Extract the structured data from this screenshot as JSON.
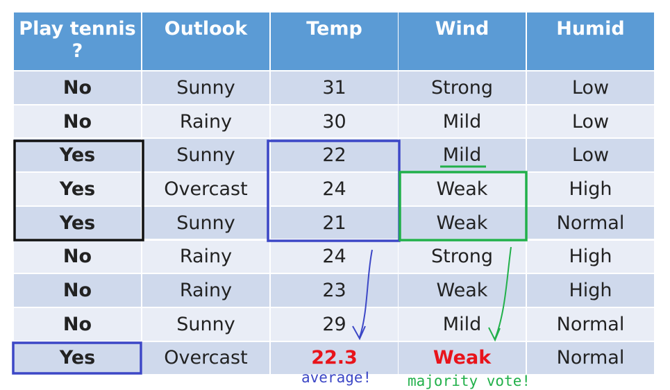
{
  "table": {
    "headers": [
      "Play tennis ?",
      "Outlook",
      "Temp",
      "Wind",
      "Humid"
    ],
    "rows": [
      [
        "No",
        "Sunny",
        "31",
        "Strong",
        "Low"
      ],
      [
        "No",
        "Rainy",
        "30",
        "Mild",
        "Low"
      ],
      [
        "Yes",
        "Sunny",
        "22",
        "Mild",
        "Low"
      ],
      [
        "Yes",
        "Overcast",
        "24",
        "Weak",
        "High"
      ],
      [
        "Yes",
        "Sunny",
        "21",
        "Weak",
        "Normal"
      ],
      [
        "No",
        "Rainy",
        "24",
        "Strong",
        "High"
      ],
      [
        "No",
        "Rainy",
        "23",
        "Weak",
        "High"
      ],
      [
        "No",
        "Sunny",
        "29",
        "Mild",
        "Normal"
      ],
      [
        "Yes",
        "Overcast",
        "22.3",
        "Weak",
        "Normal"
      ]
    ]
  },
  "annotations": {
    "average": "average!",
    "majority": "majority vote!"
  }
}
